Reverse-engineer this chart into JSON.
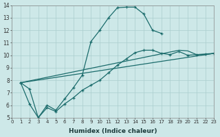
{
  "xlabel": "Humidex (Indice chaleur)",
  "ylabel": "",
  "bg_color": "#cde8e8",
  "grid_color": "#aacece",
  "line_color": "#1a6b6b",
  "xlim": [
    0,
    23
  ],
  "ylim": [
    5,
    14
  ],
  "xticks": [
    0,
    1,
    2,
    3,
    4,
    5,
    6,
    7,
    8,
    9,
    10,
    11,
    12,
    13,
    14,
    15,
    16,
    17,
    18,
    19,
    20,
    21,
    22,
    23
  ],
  "yticks": [
    5,
    6,
    7,
    8,
    9,
    10,
    11,
    12,
    13,
    14
  ],
  "line1_x": [
    1,
    2,
    3,
    4,
    5,
    6,
    7,
    8,
    9,
    10,
    11,
    12,
    13,
    14,
    15,
    16,
    17
  ],
  "line1_y": [
    7.8,
    7.3,
    5.0,
    6.0,
    5.6,
    6.5,
    7.4,
    8.4,
    11.1,
    12.0,
    13.0,
    13.8,
    13.85,
    13.85,
    13.3,
    12.0,
    11.75
  ],
  "line2_x": [
    1,
    2,
    3,
    4,
    5,
    6,
    7,
    8,
    9,
    10,
    11,
    12,
    13,
    14,
    15,
    16,
    17,
    18,
    19,
    20,
    21,
    22,
    23
  ],
  "line2_y": [
    7.8,
    6.1,
    5.0,
    5.8,
    5.5,
    6.1,
    6.6,
    7.2,
    7.6,
    8.0,
    8.6,
    9.2,
    9.7,
    10.2,
    10.4,
    10.4,
    10.15,
    10.05,
    10.3,
    10.0,
    10.05,
    10.1,
    10.15
  ],
  "line3_x": [
    1,
    23
  ],
  "line3_y": [
    7.8,
    10.15
  ],
  "line4_x": [
    1,
    19,
    20,
    21,
    22,
    23
  ],
  "line4_y": [
    7.8,
    10.4,
    10.35,
    10.05,
    10.05,
    10.15
  ]
}
